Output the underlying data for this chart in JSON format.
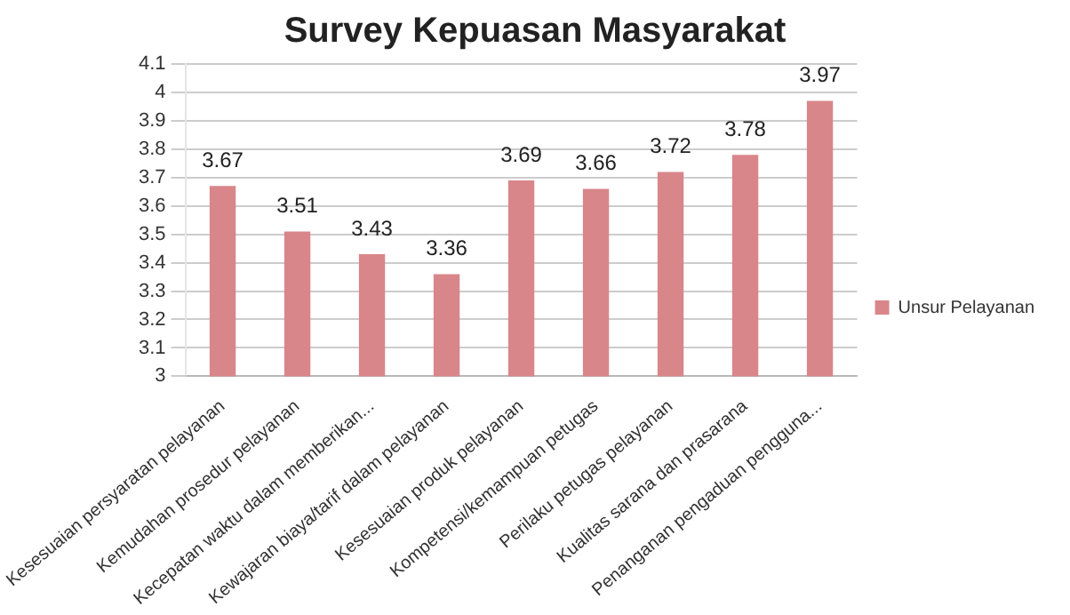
{
  "chart_data": {
    "type": "bar",
    "title": "Survey Kepuasan Masyarakat",
    "categories": [
      "Kesesuaian persyaratan pelayanan",
      "Kemudahan prosedur pelayanan",
      "Kecepatan waktu dalam memberikan...",
      "Kewajaran biaya/tarif dalam pelayanan",
      "Kesesuaian produk pelayanan",
      "Kompetensi/kemampuan petugas",
      "Perilaku petugas pelayanan",
      "Kualitas sarana dan prasarana",
      "Penanganan pengaduan pengguna..."
    ],
    "series": [
      {
        "name": "Unsur Pelayanan",
        "color": "#d9868a",
        "values": [
          3.67,
          3.51,
          3.43,
          3.36,
          3.69,
          3.66,
          3.72,
          3.78,
          3.97
        ]
      }
    ],
    "ylim": [
      3,
      4.1
    ],
    "yticks": [
      3,
      3.1,
      3.2,
      3.3,
      3.4,
      3.5,
      3.6,
      3.7,
      3.8,
      3.9,
      4,
      4.1
    ],
    "grid": "y",
    "legend": "right",
    "data_labels": true
  }
}
